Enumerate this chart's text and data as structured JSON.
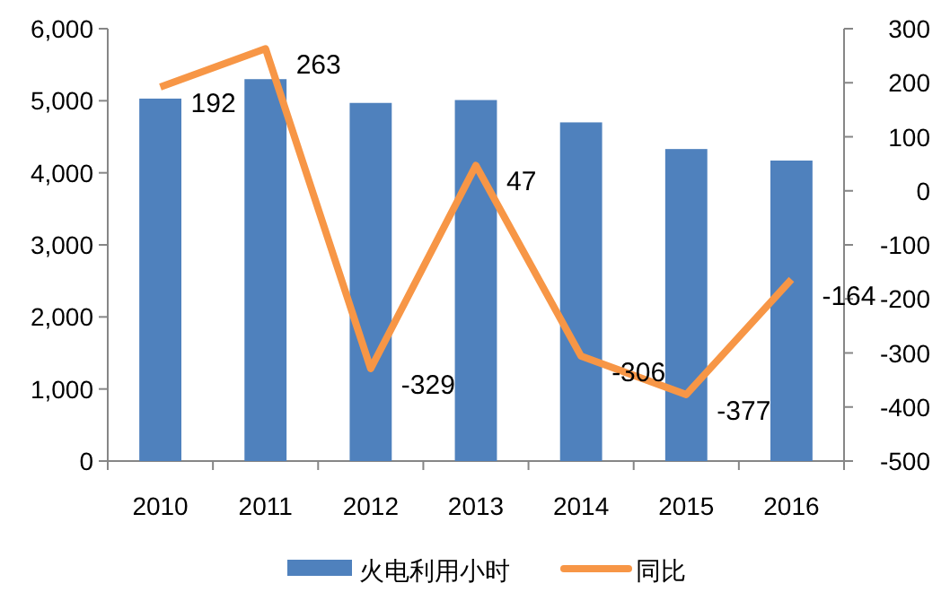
{
  "chart_data": {
    "type": "bar",
    "categories": [
      "2010",
      "2011",
      "2012",
      "2013",
      "2014",
      "2015",
      "2016"
    ],
    "series": [
      {
        "name": "火电利用小时",
        "color": "#4f81bd",
        "values": [
          5030,
          5300,
          4970,
          5010,
          4700,
          4330,
          4170
        ]
      },
      {
        "name": "同比",
        "type": "line",
        "axis": "y2",
        "color": "#f79646",
        "values": [
          192,
          263,
          -329,
          47,
          -306,
          -377,
          -164
        ],
        "value_labels": [
          "192",
          "263",
          "-329",
          "47",
          "-306",
          "-377",
          "-164"
        ]
      }
    ],
    "ylim": [
      0,
      6000
    ],
    "yticks": [
      {
        "value": 0,
        "label": "0"
      },
      {
        "value": 1000,
        "label": "1,000"
      },
      {
        "value": 2000,
        "label": "2,000"
      },
      {
        "value": 3000,
        "label": "3,000"
      },
      {
        "value": 4000,
        "label": "4,000"
      },
      {
        "value": 5000,
        "label": "5,000"
      },
      {
        "value": 6000,
        "label": "6,000"
      }
    ],
    "y2lim": [
      -500,
      300
    ],
    "y2ticks": [
      -500,
      -400,
      -300,
      -200,
      -100,
      0,
      100,
      200,
      300
    ],
    "grid": false,
    "legend": "bottom",
    "marker": "none"
  }
}
